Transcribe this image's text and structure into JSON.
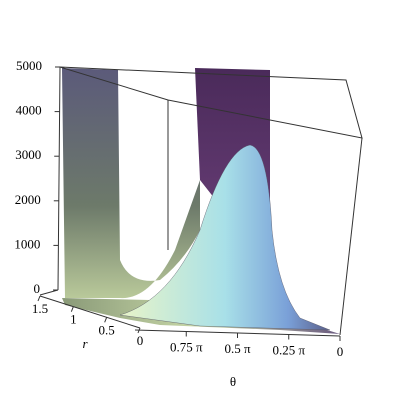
{
  "chart_data": {
    "type": "surface",
    "xlabel": "r",
    "ylabel": "θ",
    "zlim": [
      0,
      5000
    ],
    "zticks": [
      0,
      1000,
      2000,
      3000,
      4000,
      5000
    ],
    "xlim": [
      0,
      1.5
    ],
    "xticks": [
      1.5,
      1,
      0.5,
      0
    ],
    "ylim": [
      0,
      1
    ],
    "yticks": [
      {
        "value": 0.75,
        "label": "0.75 π"
      },
      {
        "value": 0.5,
        "label": "0.5 π"
      },
      {
        "value": 0.25,
        "label": "0.25 π"
      },
      0
    ]
  }
}
